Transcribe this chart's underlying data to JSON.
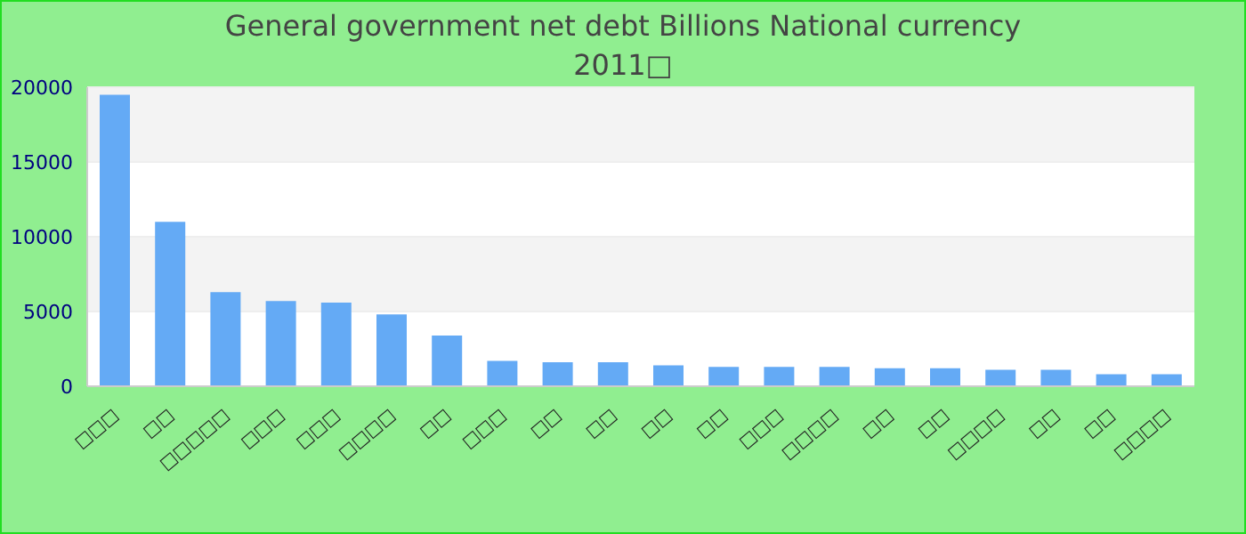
{
  "chart_data": {
    "type": "bar",
    "title": "General government net debt Billions National currency",
    "subtitle": "2011□",
    "categories": [
      "□□□",
      "□□",
      "□□□□□",
      "□□□",
      "□□□",
      "□□□□",
      "□□",
      "□□□",
      "□□",
      "□□",
      "□□",
      "□□",
      "□□□",
      "□□□□",
      "□□",
      "□□",
      "□□□□",
      "□□",
      "□□",
      "□□□□"
    ],
    "values": [
      19500,
      11000,
      6300,
      5700,
      5600,
      4800,
      3400,
      1700,
      1600,
      1600,
      1400,
      1300,
      1300,
      1300,
      1200,
      1200,
      1100,
      1100,
      800,
      800
    ],
    "color": "#64aaf5",
    "ylim": [
      0,
      20000
    ],
    "yticks": [
      0,
      5000,
      10000,
      15000,
      20000
    ],
    "grid": "y",
    "legend": false
  }
}
